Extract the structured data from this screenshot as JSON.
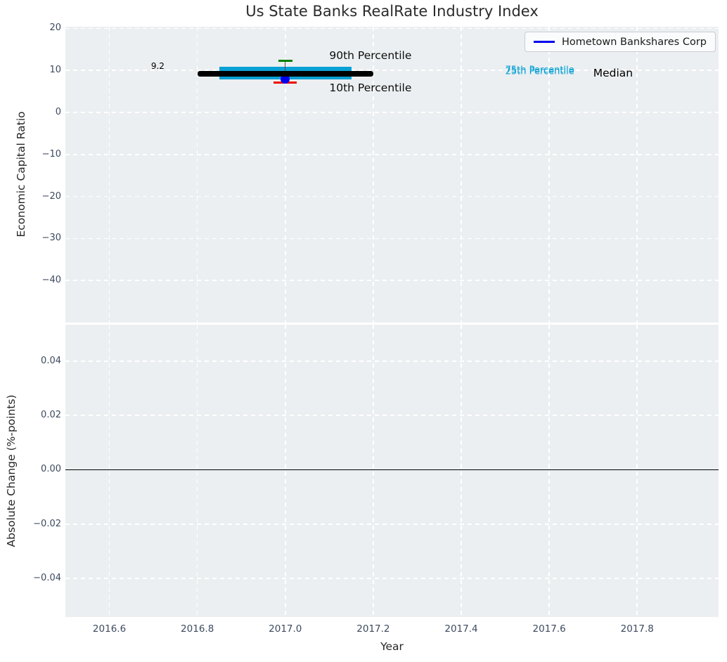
{
  "title": "Us State Banks RealRate Industry Index",
  "legend": {
    "label": "Hometown Bankshares Corp",
    "line_color": "#0000ee"
  },
  "colors": {
    "figure_bg": "#ffffff",
    "plot_bg": "#eceff1",
    "grid": "#ffffff",
    "tick_label": "#3d4a5f",
    "axis_label": "#262626",
    "title": "#2b2b2b",
    "box_fill": "#09a1d5",
    "percentile_text": "#09a1d5",
    "median_line": "#000000",
    "p90_cap": "#008000",
    "p10_cap": "#ee0000",
    "whisker": "#4d4d4d",
    "company_dot": "#0000ee",
    "zero_line": "#000000"
  },
  "chart_data": [
    {
      "panel": "top",
      "type": "box",
      "ylabel": "Economic Capital Ratio",
      "xlim": [
        2016.5,
        2017.985
      ],
      "ylim": [
        -50.0,
        20.4
      ],
      "xticks": [
        2016.6,
        2016.8,
        2017.0,
        2017.2,
        2017.4,
        2017.6,
        2017.8
      ],
      "xtick_labels": [
        "",
        "",
        "",
        "",
        "",
        "",
        ""
      ],
      "yticks": [
        20,
        10,
        0,
        -10,
        -20,
        -30,
        -40
      ],
      "ytick_labels": [
        "20",
        "10",
        "0",
        "−10",
        "−20",
        "−30",
        "−40"
      ],
      "grid": true,
      "legend_position": "upper right",
      "box": {
        "x": 2017.0,
        "box_x_span": [
          2016.85,
          2017.15
        ],
        "median_x_span": [
          2016.8,
          2017.2
        ],
        "median": 9.2,
        "p25": 7.8,
        "p75": 10.8,
        "p10": 7.1,
        "p90": 12.3,
        "company_value": 7.9
      },
      "series": [
        {
          "name": "Hometown Bankshares Corp",
          "x": [
            2017.0
          ],
          "y": [
            7.9
          ]
        }
      ],
      "annotations": [
        {
          "text": "9.2",
          "x": 2016.71,
          "y": 11.0,
          "anchor": "middle",
          "size": 12,
          "color": "#000000"
        },
        {
          "text": "90th Percentile",
          "x": 2017.1,
          "y": 13.6,
          "anchor": "start",
          "size": 15.5,
          "color": "#0d0d0d"
        },
        {
          "text": "10th Percentile",
          "x": 2017.1,
          "y": 5.9,
          "anchor": "start",
          "size": 15.5,
          "color": "#0d0d0d"
        },
        {
          "text": "75th Percentile",
          "x": 2017.5,
          "y": 10.1,
          "anchor": "start",
          "size": 13,
          "color": "#09a1d5"
        },
        {
          "text": "25th Percentile",
          "x": 2017.5,
          "y": 9.75,
          "anchor": "start",
          "size": 13,
          "color": "#09a1d5"
        },
        {
          "text": "Median",
          "x": 2017.7,
          "y": 9.3,
          "anchor": "start",
          "size": 15.5,
          "color": "#000000"
        }
      ]
    },
    {
      "panel": "bottom",
      "type": "line",
      "ylabel": "Absolute Change (%-points)",
      "xlabel": "Year",
      "xlim": [
        2016.5,
        2017.985
      ],
      "ylim": [
        -0.0542,
        0.0534
      ],
      "xticks": [
        2016.6,
        2016.8,
        2017.0,
        2017.2,
        2017.4,
        2017.6,
        2017.8
      ],
      "xtick_labels": [
        "2016.6",
        "2016.8",
        "2017.0",
        "2017.2",
        "2017.4",
        "2017.6",
        "2017.8"
      ],
      "yticks": [
        0.04,
        0.02,
        0.0,
        -0.02,
        -0.04
      ],
      "ytick_labels": [
        "0.04",
        "0.02",
        "0.00",
        "−0.02",
        "−0.04"
      ],
      "grid": true,
      "zero_line": true,
      "series": []
    }
  ]
}
